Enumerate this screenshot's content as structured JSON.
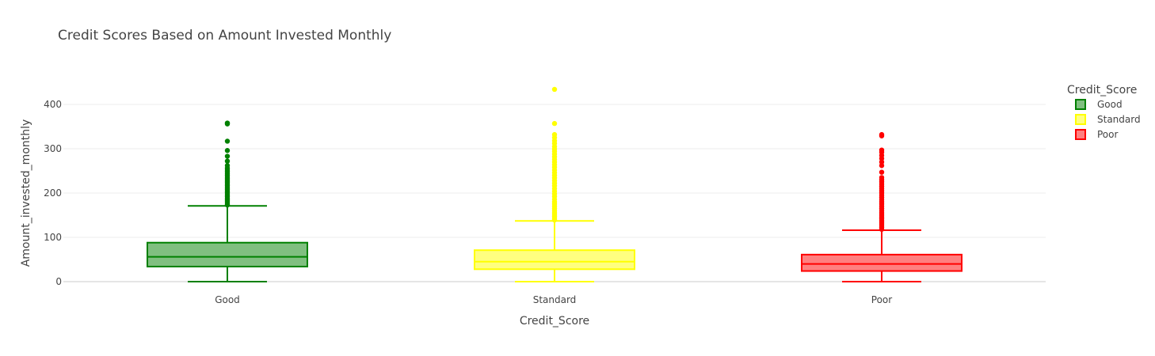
{
  "chart_data": {
    "type": "box",
    "title": "Credit Scores Based on Amount Invested Monthly",
    "xlabel": "Credit_Score",
    "ylabel": "Amount_invested_monthly",
    "ylim": [
      0,
      435
    ],
    "yticks": [
      0,
      100,
      200,
      300,
      400
    ],
    "grid": true,
    "legend": {
      "title": "Credit_Score",
      "placement": "top-right"
    },
    "categories": [
      "Good",
      "Standard",
      "Poor"
    ],
    "series": [
      {
        "name": "Good",
        "color": "#008000",
        "fill": "#80bf80",
        "min": 0,
        "q1": 34,
        "median": 56,
        "q3": 88,
        "upper_fence": 171,
        "outliers": [
          173,
          176,
          180,
          184,
          188,
          192,
          196,
          200,
          204,
          208,
          212,
          216,
          220,
          224,
          228,
          232,
          236,
          240,
          244,
          248,
          252,
          256,
          262,
          272,
          283,
          296,
          317,
          356,
          358
        ]
      },
      {
        "name": "Standard",
        "color": "#ffff00",
        "fill": "#ffff80",
        "min": 0,
        "q1": 28,
        "median": 45,
        "q3": 71,
        "upper_fence": 137,
        "outliers": [
          139,
          143,
          147,
          151,
          155,
          160,
          165,
          170,
          175,
          180,
          186,
          192,
          198,
          204,
          210,
          216,
          222,
          228,
          234,
          240,
          246,
          252,
          258,
          264,
          270,
          276,
          282,
          288,
          294,
          299,
          305,
          312,
          318,
          325,
          332,
          357,
          434
        ]
      },
      {
        "name": "Poor",
        "color": "#ff0000",
        "fill": "#ff8080",
        "min": 0,
        "q1": 24,
        "median": 40,
        "q3": 61,
        "upper_fence": 116,
        "outliers": [
          118,
          122,
          126,
          130,
          134,
          138,
          142,
          146,
          150,
          155,
          160,
          165,
          170,
          175,
          180,
          185,
          190,
          195,
          200,
          205,
          210,
          215,
          220,
          225,
          230,
          235,
          247,
          262,
          270,
          278,
          285,
          292,
          297,
          329,
          332
        ]
      }
    ]
  }
}
